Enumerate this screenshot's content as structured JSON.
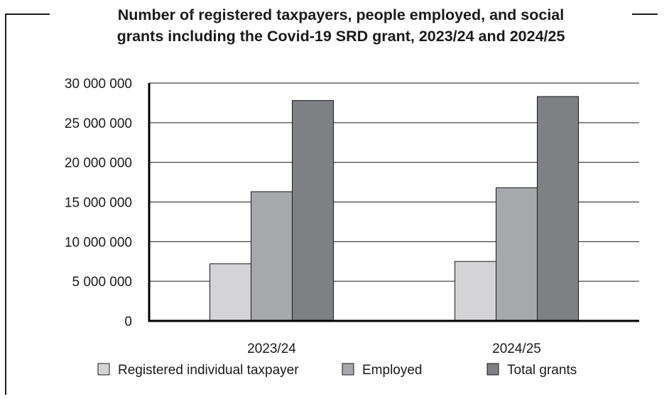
{
  "chart_data": {
    "type": "bar",
    "title": "Number of registered taxpayers, people employed, and social grants including the Covid-19 SRD grant, 2023/24 and 2024/25",
    "title_lines": [
      "Number of registered taxpayers, people employed, and social",
      "grants including the Covid-19 SRD grant, 2023/24 and 2024/25"
    ],
    "categories": [
      "2023/24",
      "2024/25"
    ],
    "series": [
      {
        "name": "Registered individual taxpayer",
        "color": "#d4d4d6",
        "values": [
          7200000,
          7500000
        ]
      },
      {
        "name": "Employed",
        "color": "#a7a8ab",
        "values": [
          16300000,
          16800000
        ]
      },
      {
        "name": "Total grants",
        "color": "#7f8084",
        "values": [
          27800000,
          28300000
        ]
      }
    ],
    "ylim": [
      0,
      30000000
    ],
    "yticks": [
      0,
      5000000,
      10000000,
      15000000,
      20000000,
      25000000,
      30000000
    ],
    "ytick_labels": [
      "0",
      "5 000 000",
      "10 000 000",
      "15 000 000",
      "20 000 000",
      "25 000 000",
      "30 000 000"
    ],
    "xlabel": "",
    "ylabel": "",
    "grid": true,
    "legend": "bottom"
  }
}
